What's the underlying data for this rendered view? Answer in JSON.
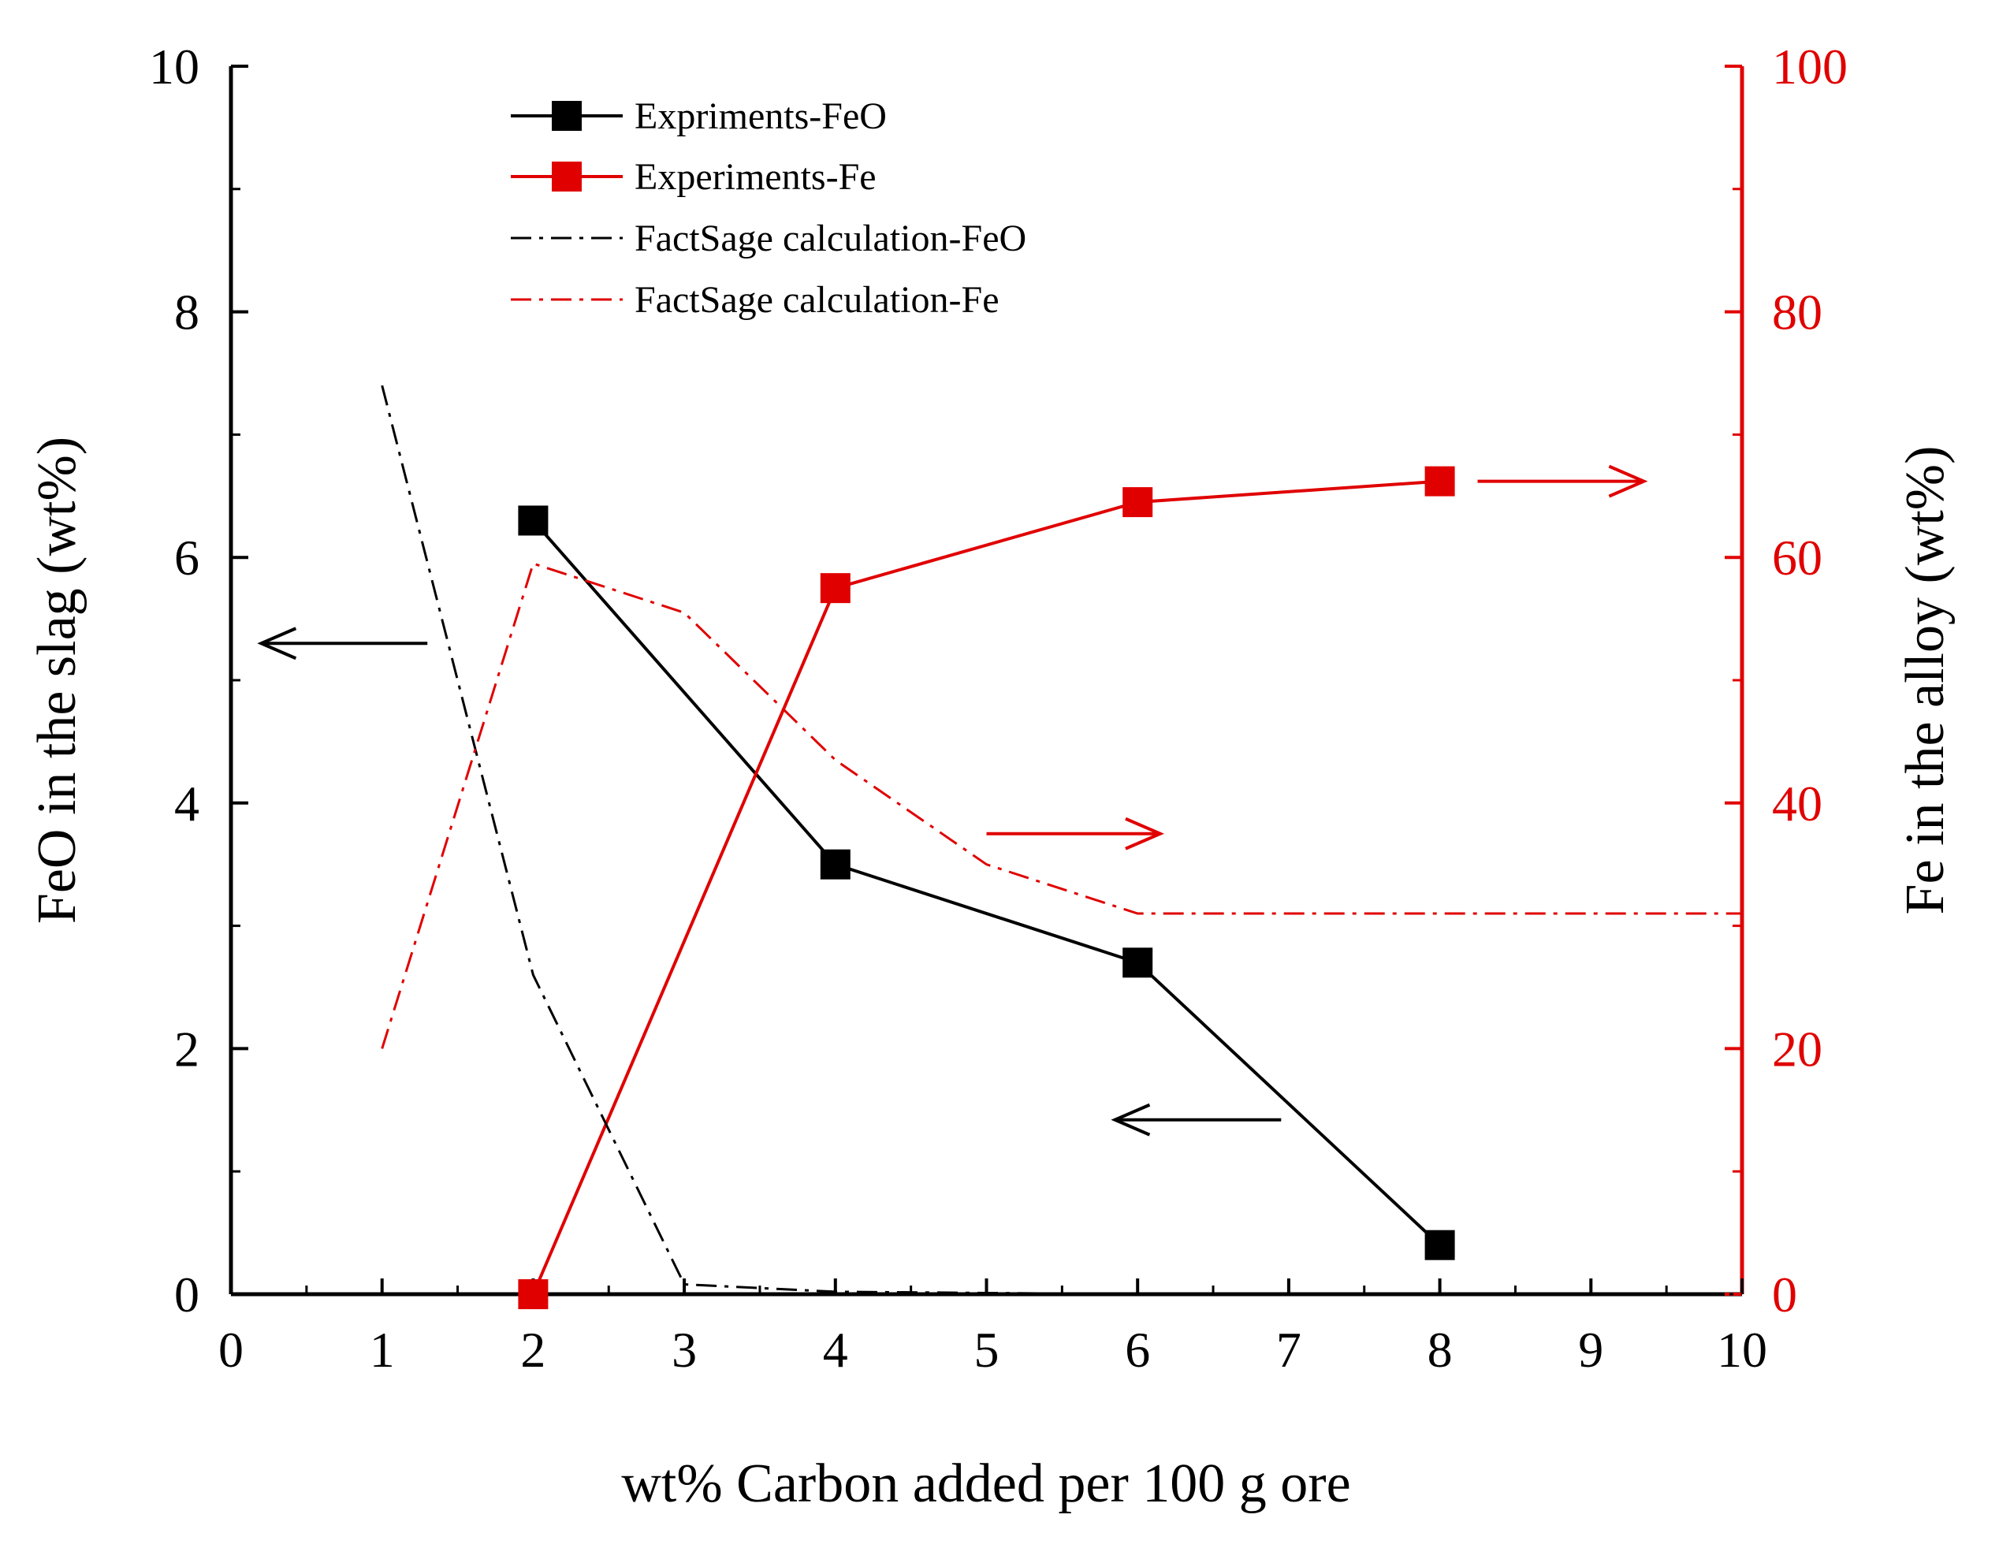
{
  "chart_data": {
    "type": "line",
    "title": "",
    "xlabel": "wt% Carbon added per 100 g ore",
    "ylabel_left": "FeO in the slag (wt%)",
    "ylabel_right": "Fe in the alloy (wt%)",
    "xlim": [
      0,
      10
    ],
    "ylim_left": [
      0,
      10
    ],
    "ylim_right": [
      0,
      100
    ],
    "x_ticks": [
      "0",
      "1",
      "2",
      "3",
      "4",
      "5",
      "6",
      "7",
      "8",
      "9",
      "10"
    ],
    "y_left_ticks": [
      "0",
      "2",
      "4",
      "6",
      "8",
      "10"
    ],
    "y_right_ticks": [
      "0",
      "20",
      "40",
      "60",
      "80",
      "100"
    ],
    "grid": false,
    "legend_position": "top-center",
    "colors": {
      "black": "#000000",
      "red": "#e00000"
    },
    "series": [
      {
        "name": "Expriments-FeO",
        "axis": "left",
        "color": "#000000",
        "style": "solid-square",
        "x": [
          2,
          4,
          6,
          8
        ],
        "y": [
          6.3,
          3.5,
          2.7,
          0.4
        ]
      },
      {
        "name": "Experiments-Fe",
        "axis": "right",
        "color": "#e00000",
        "style": "solid-square",
        "x": [
          2,
          4,
          6,
          8
        ],
        "y": [
          0,
          57.5,
          64.5,
          66.2
        ]
      },
      {
        "name": "FactSage calculation-FeO",
        "axis": "left",
        "color": "#000000",
        "style": "dashdot",
        "x": [
          1,
          2,
          3,
          4,
          5,
          6,
          7,
          8,
          9,
          10
        ],
        "y": [
          7.4,
          2.6,
          0.08,
          0.02,
          0.01,
          0.0,
          0.0,
          0.0,
          0.0,
          0.0
        ]
      },
      {
        "name": "FactSage calculation-Fe",
        "axis": "right",
        "color": "#e00000",
        "style": "dashdot",
        "x": [
          1,
          2,
          3,
          4,
          5,
          6,
          7,
          8,
          9,
          10
        ],
        "y": [
          20,
          59.5,
          55.5,
          43.5,
          35,
          31,
          31,
          31,
          31,
          31
        ]
      }
    ],
    "annotations": [
      {
        "type": "arrow",
        "direction": "left",
        "axis": "left",
        "x_from": 1.3,
        "x_to": 0.2,
        "y": 5.3,
        "color": "#000000"
      },
      {
        "type": "arrow",
        "direction": "left",
        "axis": "left",
        "x_from": 6.95,
        "x_to": 5.85,
        "y": 1.42,
        "color": "#000000"
      },
      {
        "type": "arrow",
        "direction": "right",
        "axis": "right",
        "x_from": 5.0,
        "x_to": 6.15,
        "y": 37.5,
        "color": "#e00000"
      },
      {
        "type": "arrow",
        "direction": "right",
        "axis": "right",
        "x_from": 8.25,
        "x_to": 9.35,
        "y": 66.2,
        "color": "#e00000"
      }
    ]
  }
}
